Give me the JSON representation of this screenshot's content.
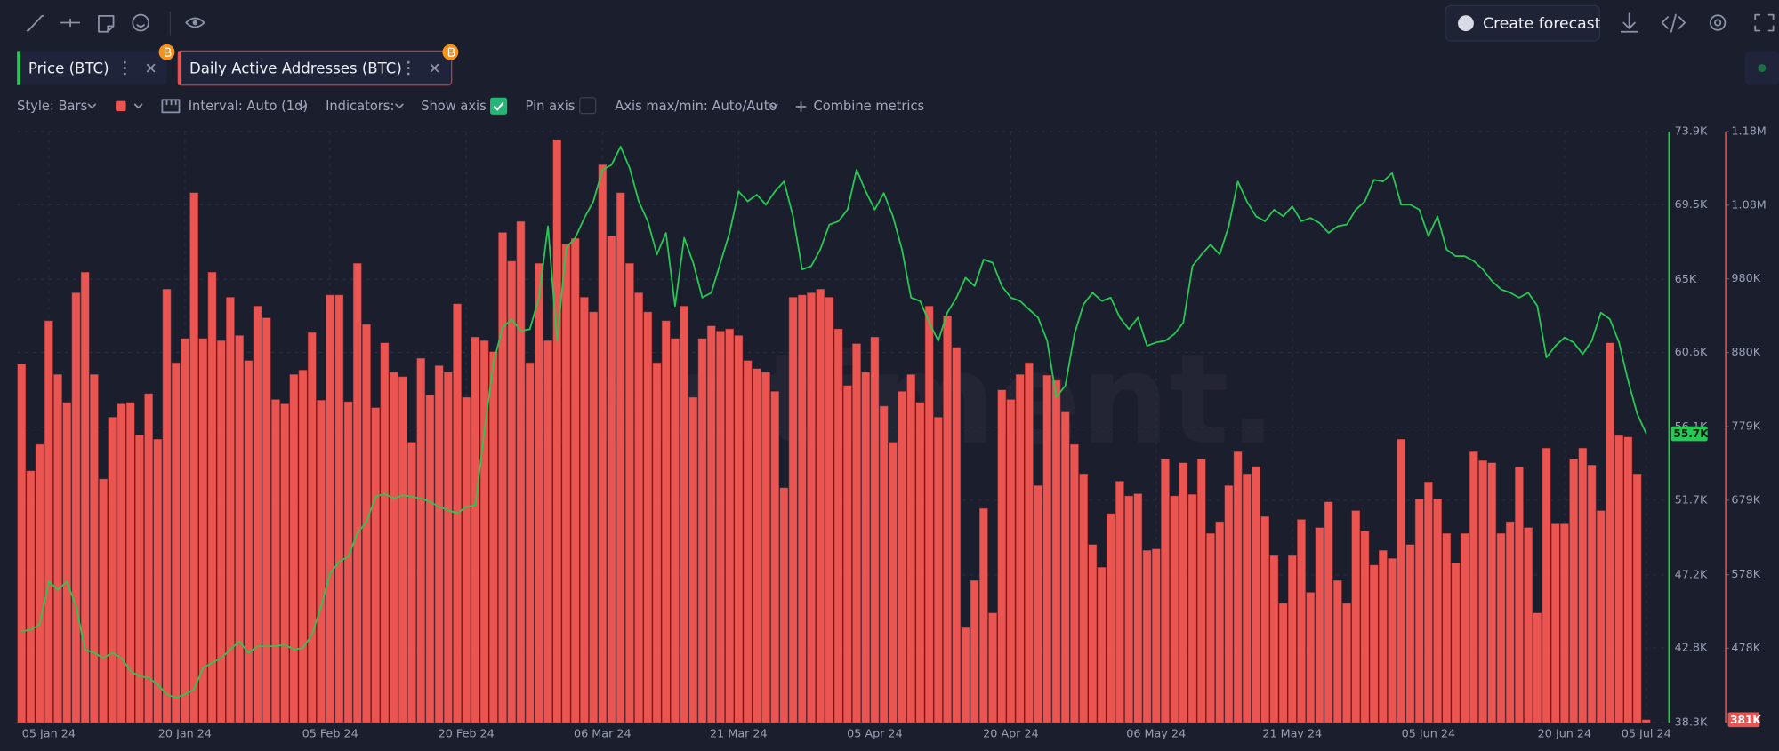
{
  "toolbar": {
    "create_forecast": "Create forecast"
  },
  "controls": {
    "style": "Style: Bars",
    "interval": "Interval: Auto (1d)",
    "indicators": "Indicators:",
    "show_axis": "Show axis",
    "pin_axis": "Pin axis",
    "axis_range": "Axis max/min: Auto/Auto",
    "combine": "Combine metrics"
  },
  "watermark": "santiment.",
  "chart_data": {
    "type": "combo",
    "grid": true,
    "categories": [
      null,
      null,
      null,
      "05 Jan 24",
      null,
      null,
      null,
      null,
      null,
      null,
      null,
      null,
      null,
      null,
      null,
      null,
      null,
      null,
      "20 Jan 24",
      null,
      null,
      null,
      null,
      null,
      null,
      null,
      null,
      null,
      null,
      null,
      null,
      null,
      null,
      null,
      "05 Feb 24",
      null,
      null,
      null,
      null,
      null,
      null,
      null,
      null,
      null,
      null,
      null,
      null,
      null,
      null,
      "20 Feb 24",
      null,
      null,
      null,
      null,
      null,
      null,
      null,
      null,
      null,
      null,
      null,
      null,
      null,
      null,
      "06 Mar 24",
      null,
      null,
      null,
      null,
      null,
      null,
      null,
      null,
      null,
      null,
      null,
      null,
      null,
      null,
      "21 Mar 24",
      null,
      null,
      null,
      null,
      null,
      null,
      null,
      null,
      null,
      null,
      null,
      null,
      null,
      null,
      "05 Apr 24",
      null,
      null,
      null,
      null,
      null,
      null,
      null,
      null,
      null,
      null,
      null,
      null,
      null,
      null,
      "20 Apr 24",
      null,
      null,
      null,
      null,
      null,
      null,
      null,
      null,
      null,
      null,
      null,
      null,
      null,
      null,
      null,
      "06 May 24",
      null,
      null,
      null,
      null,
      null,
      null,
      null,
      null,
      null,
      null,
      null,
      null,
      null,
      null,
      "21 May 24",
      null,
      null,
      null,
      null,
      null,
      null,
      null,
      null,
      null,
      null,
      null,
      null,
      null,
      null,
      "05 Jun 24",
      null,
      null,
      null,
      null,
      null,
      null,
      null,
      null,
      null,
      null,
      null,
      null,
      null,
      null,
      "20 Jun 24",
      null,
      null,
      null,
      null,
      null,
      null,
      null,
      null,
      "05 Jul 24"
    ],
    "ylim": [
      38300,
      73900
    ],
    "yticks": [
      {
        "value": 38300,
        "label": "38.3K"
      },
      {
        "value": 42800,
        "label": "42.8K"
      },
      {
        "value": 47200,
        "label": "47.2K"
      },
      {
        "value": 51700,
        "label": "51.7K"
      },
      {
        "value": 56100,
        "label": "56.1K"
      },
      {
        "value": 60600,
        "label": "60.6K"
      },
      {
        "value": 65000,
        "label": "65K"
      },
      {
        "value": 69500,
        "label": "69.5K"
      },
      {
        "value": 73900,
        "label": "73.9K"
      }
    ],
    "y2lim": [
      377000,
      1180000
    ],
    "y2ticks": [
      {
        "value": 478000,
        "label": "478K"
      },
      {
        "value": 578000,
        "label": "578K"
      },
      {
        "value": 679000,
        "label": "679K"
      },
      {
        "value": 779000,
        "label": "779K"
      },
      {
        "value": 880000,
        "label": "880K"
      },
      {
        "value": 980000,
        "label": "980K"
      },
      {
        "value": 1080000,
        "label": "1.08M"
      },
      {
        "value": 1180000,
        "label": "1.18M"
      }
    ],
    "series": [
      {
        "name": "Price (BTC)",
        "type": "line",
        "color": "#26c953",
        "values": [
          43800,
          43900,
          44200,
          46800,
          46300,
          46800,
          45300,
          42700,
          42500,
          42200,
          42500,
          42200,
          41400,
          41100,
          41000,
          40600,
          40000,
          39800,
          40000,
          40300,
          41600,
          41900,
          42200,
          42700,
          43200,
          42500,
          42900,
          42900,
          42900,
          43000,
          42700,
          42800,
          43600,
          45300,
          47300,
          48000,
          48300,
          49700,
          50400,
          51900,
          52100,
          51800,
          52000,
          51900,
          51800,
          51600,
          51300,
          51100,
          50900,
          51300,
          51400,
          55900,
          60000,
          62100,
          62600,
          61900,
          62000,
          63900,
          68200,
          61300,
          66900,
          67500,
          68700,
          69700,
          71600,
          71900,
          73000,
          71700,
          69700,
          68500,
          66500,
          67800,
          63400,
          67500,
          66000,
          63900,
          64200,
          66000,
          67800,
          70300,
          69700,
          70100,
          69500,
          70300,
          70900,
          68800,
          65600,
          65800,
          66800,
          68300,
          68500,
          69200,
          71600,
          70300,
          69200,
          70200,
          68800,
          66800,
          63900,
          63700,
          62400,
          61300,
          63000,
          63900,
          65100,
          64600,
          66200,
          66000,
          64600,
          63900,
          63700,
          63200,
          62700,
          61300,
          57900,
          58600,
          61700,
          63500,
          64200,
          63700,
          63900,
          62700,
          62000,
          62700,
          61000,
          61200,
          61300,
          61700,
          62400,
          65800,
          66500,
          67100,
          66500,
          68200,
          70900,
          69700,
          68800,
          68500,
          69200,
          68800,
          69400,
          68500,
          68700,
          68400,
          67800,
          68200,
          68300,
          69200,
          69700,
          71000,
          70900,
          71400,
          69500,
          69500,
          69200,
          67600,
          68800,
          66800,
          66400,
          66400,
          66100,
          65600,
          64900,
          64400,
          64200,
          63900,
          64200,
          63400,
          60300,
          61000,
          61500,
          61200,
          60500,
          61300,
          63000,
          62600,
          61200,
          58900,
          56900,
          55700
        ],
        "value_labels": [
          null,
          null,
          null,
          null,
          null,
          null,
          null,
          null,
          null,
          null,
          null,
          null,
          null,
          null,
          null,
          null,
          null,
          null,
          null,
          null,
          null,
          null,
          null,
          null,
          null,
          null,
          null,
          null,
          null,
          null,
          null,
          null,
          null,
          null,
          null,
          null,
          null,
          null,
          null,
          null,
          null,
          null,
          null,
          null,
          null,
          null,
          null,
          null,
          null,
          null,
          null,
          null,
          null,
          null,
          null,
          null,
          null,
          null,
          null,
          null,
          null,
          null,
          null,
          null,
          null,
          null,
          null,
          null,
          null,
          null,
          null,
          null,
          null,
          null,
          null,
          null,
          null,
          null,
          null,
          null,
          null,
          null,
          null,
          null,
          null,
          null,
          null,
          null,
          null,
          null,
          null,
          null,
          null,
          null,
          null,
          null,
          null,
          null,
          null,
          null,
          null,
          null,
          null,
          null,
          null,
          null,
          null,
          null,
          null,
          null,
          null,
          null,
          null,
          null,
          null,
          null,
          null,
          null,
          null,
          null,
          null,
          null,
          null,
          null,
          null,
          null,
          null,
          null,
          null,
          null,
          null,
          null,
          null,
          null,
          null,
          null,
          null,
          null,
          null,
          null,
          null,
          null,
          null,
          null,
          null,
          null,
          null,
          null,
          null,
          null,
          null,
          null,
          null,
          null,
          null,
          null,
          null,
          null,
          null,
          null,
          null,
          null,
          null,
          null,
          null,
          null,
          null,
          null,
          null,
          null,
          null,
          null,
          null,
          null,
          null,
          null,
          null,
          null,
          null,
          "55.7K"
        ]
      },
      {
        "name": "Daily Active Addresses (BTC)",
        "type": "bar",
        "axis": "y2",
        "color": "#ea5451",
        "values": [
          864000,
          719000,
          755000,
          923000,
          850000,
          812000,
          961000,
          989000,
          850000,
          708000,
          792000,
          810000,
          812000,
          768000,
          824000,
          762000,
          966000,
          866000,
          899000,
          1097000,
          899000,
          989000,
          896000,
          955000,
          903000,
          869000,
          943000,
          927000,
          816000,
          810000,
          850000,
          856000,
          907000,
          815000,
          958000,
          958000,
          813000,
          1001000,
          918000,
          805000,
          893000,
          853000,
          847000,
          758000,
          872000,
          822000,
          862000,
          853000,
          946000,
          819000,
          901000,
          896000,
          881000,
          1043000,
          1004000,
          1058000,
          866000,
          1001000,
          896000,
          1169000,
          1027000,
          1035000,
          955000,
          935000,
          1135000,
          1038000,
          1097000,
          1001000,
          961000,
          935000,
          866000,
          923000,
          899000,
          943000,
          819000,
          899000,
          916000,
          909000,
          912000,
          903000,
          869000,
          858000,
          853000,
          827000,
          696000,
          955000,
          958000,
          961000,
          966000,
          955000,
          912000,
          835000,
          892000,
          853000,
          901000,
          807000,
          758000,
          827000,
          850000,
          812000,
          943000,
          792000,
          930000,
          887000,
          506000,
          570000,
          668000,
          526000,
          829000,
          816000,
          850000,
          866000,
          699000,
          849000,
          842000,
          799000,
          755000,
          715000,
          619000,
          588000,
          661000,
          705000,
          685000,
          688000,
          611000,
          613000,
          735000,
          685000,
          730000,
          687000,
          735000,
          634000,
          650000,
          699000,
          745000,
          715000,
          725000,
          657000,
          604000,
          539000,
          604000,
          653000,
          554000,
          642000,
          677000,
          570000,
          539000,
          665000,
          637000,
          591000,
          611000,
          600000,
          762000,
          619000,
          681000,
          704000,
          681000,
          634000,
          594000,
          634000,
          745000,
          733000,
          730000,
          634000,
          650000,
          724000,
          642000,
          526000,
          750000,
          647000,
          647000,
          735000,
          750000,
          727000,
          665000,
          893000,
          767000,
          765000,
          715000,
          381000
        ],
        "value_labels": [
          null,
          null,
          null,
          null,
          null,
          null,
          null,
          null,
          null,
          null,
          null,
          null,
          null,
          null,
          null,
          null,
          null,
          null,
          null,
          null,
          null,
          null,
          null,
          null,
          null,
          null,
          null,
          null,
          null,
          null,
          null,
          null,
          null,
          null,
          null,
          null,
          null,
          null,
          null,
          null,
          null,
          null,
          null,
          null,
          null,
          null,
          null,
          null,
          null,
          null,
          null,
          null,
          null,
          null,
          null,
          null,
          null,
          null,
          null,
          null,
          null,
          null,
          null,
          null,
          null,
          null,
          null,
          null,
          null,
          null,
          null,
          null,
          null,
          null,
          null,
          null,
          null,
          null,
          null,
          null,
          null,
          null,
          null,
          null,
          null,
          null,
          null,
          null,
          null,
          null,
          null,
          null,
          null,
          null,
          null,
          null,
          null,
          null,
          null,
          null,
          null,
          null,
          null,
          null,
          null,
          null,
          null,
          null,
          null,
          null,
          null,
          null,
          null,
          null,
          null,
          null,
          null,
          null,
          null,
          null,
          null,
          null,
          null,
          null,
          null,
          null,
          null,
          null,
          null,
          null,
          null,
          null,
          null,
          null,
          null,
          null,
          null,
          null,
          null,
          null,
          null,
          null,
          null,
          null,
          null,
          null,
          null,
          null,
          null,
          null,
          null,
          null,
          null,
          null,
          null,
          null,
          null,
          null,
          null,
          null,
          null,
          null,
          null,
          null,
          null,
          null,
          null,
          null,
          null,
          null,
          null,
          null,
          null,
          null,
          null,
          null,
          null,
          null,
          null,
          "381K"
        ]
      }
    ]
  }
}
